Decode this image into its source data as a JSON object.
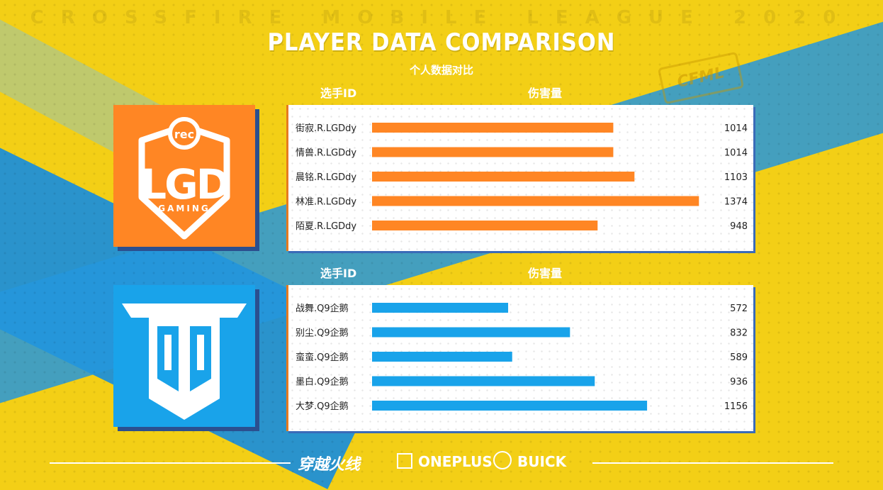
{
  "header": {
    "watermark": "CROSSFIRE MOBILE LEAGUE 2020",
    "title": "PLAYER DATA COMPARISON",
    "subtitle": "个人数据对比",
    "badge": "CFML"
  },
  "columns": {
    "player_id_label": "选手ID",
    "damage_label": "伤害量"
  },
  "colors": {
    "team1_bar": "#ff8624",
    "team2_bar": "#19a3ea"
  },
  "teams": [
    {
      "logo_name": "LGD GAMING",
      "logo_small": "rec"
    },
    {
      "logo_name": "Q9"
    }
  ],
  "chart_data": [
    {
      "type": "bar",
      "orientation": "horizontal",
      "categories": [
        "街寂.R.LGDdy",
        "情兽.R.LGDdy",
        "晨铭.R.LGDdy",
        "林准.R.LGDdy",
        "陌夏.R.LGDdy"
      ],
      "values": [
        1014,
        1014,
        1103,
        1374,
        948
      ],
      "xlim": [
        0,
        1400
      ]
    },
    {
      "type": "bar",
      "orientation": "horizontal",
      "categories": [
        "战舞.Q9企鹅",
        "别尘.Q9企鹅",
        "蛮蛮.Q9企鹅",
        "墨白.Q9企鹅",
        "大梦.Q9企鹅"
      ],
      "values": [
        572,
        832,
        589,
        936,
        1156
      ],
      "xlim": [
        0,
        1400
      ]
    }
  ],
  "footer": {
    "crossfire": "穿越火线",
    "oneplus": "ONEPLUS",
    "buick": "BUICK"
  }
}
